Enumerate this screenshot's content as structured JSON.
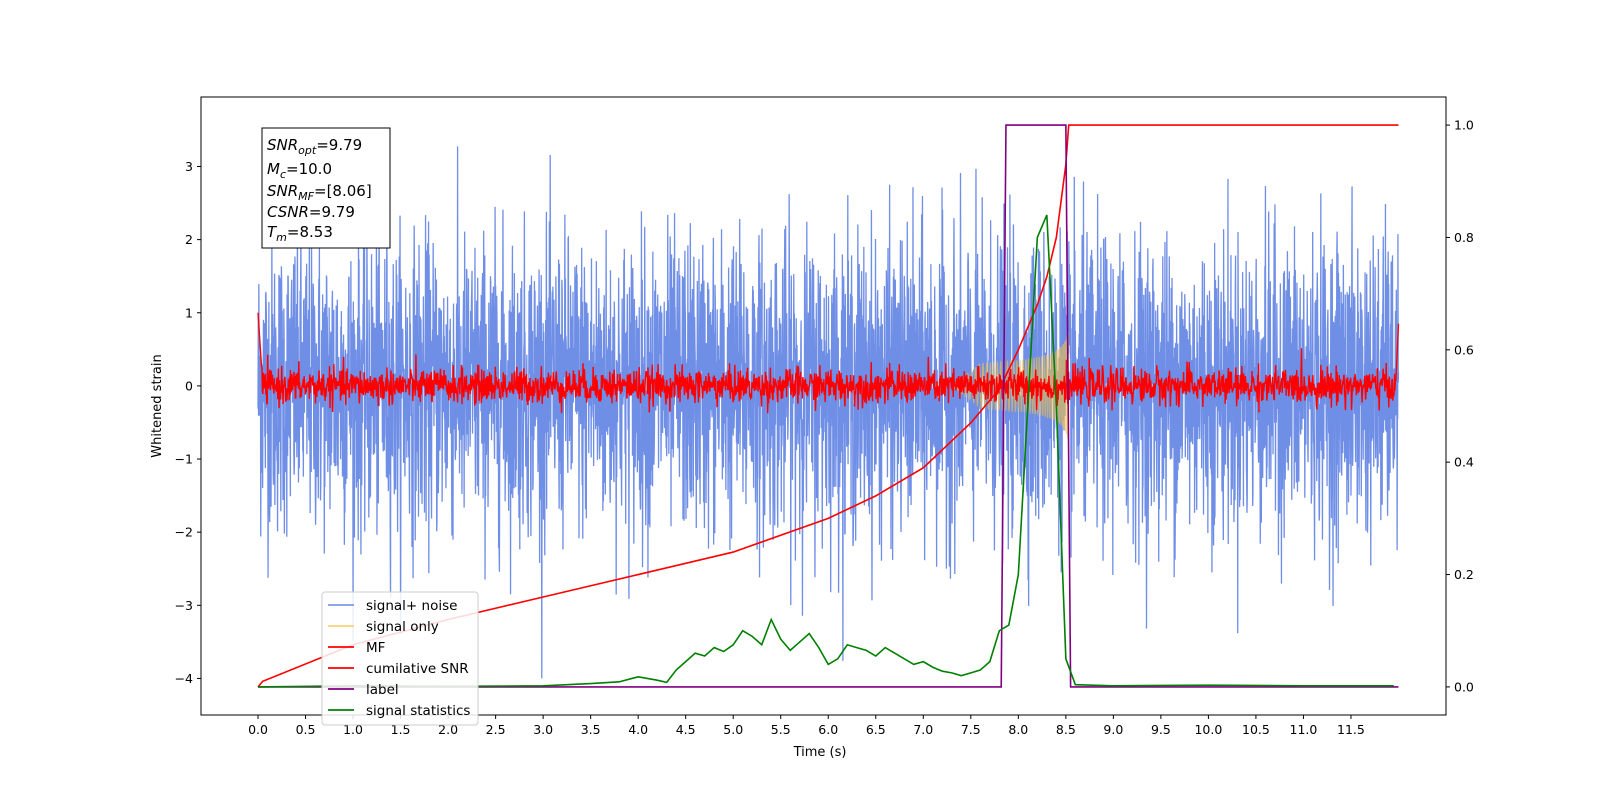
{
  "chart_data": {
    "type": "line",
    "xlabel": "Time (s)",
    "ylabel": "Whitened strain",
    "xlim": [
      -0.6,
      12.5
    ],
    "ylim": [
      -4.5,
      3.95
    ],
    "y2lim": [
      -0.05,
      1.05
    ],
    "x_ticks": [
      "0.0",
      "0.5",
      "1.0",
      "1.5",
      "2.0",
      "2.5",
      "3.0",
      "3.5",
      "4.0",
      "4.5",
      "5.0",
      "5.5",
      "6.0",
      "6.5",
      "7.0",
      "7.5",
      "8.0",
      "8.5",
      "9.0",
      "9.5",
      "10.0",
      "10.5",
      "11.0",
      "11.5"
    ],
    "y_ticks": [
      "3",
      "2",
      "1",
      "0",
      "−1",
      "−2",
      "−3",
      "−4"
    ],
    "y2_ticks": [
      "1.0",
      "0.8",
      "0.6",
      "0.4",
      "0.2",
      "0.0"
    ],
    "grid": false,
    "legend_position": "lower left",
    "info_box": {
      "snr_opt": {
        "main": "SNR",
        "sub": "opt",
        "value": "=9.79"
      },
      "mc": {
        "main": "M",
        "sub": "c",
        "value": "=10.0"
      },
      "snr_mf": {
        "main": "SNR",
        "sub": "MF",
        "value": "=[8.06]"
      },
      "csnr": {
        "main": "CSNR",
        "value": "=9.79"
      },
      "tm": {
        "main": "T",
        "sub": "m",
        "value": "=8.53"
      }
    },
    "series": [
      {
        "name": "signal+ noise",
        "color": "#6f8ee6",
        "axis": "left",
        "kind": "noise",
        "x_range": [
          0.0,
          12.0
        ],
        "y_spread": 1.0,
        "y_extremes": [
          -4.0,
          3.55
        ]
      },
      {
        "name": "signal only",
        "color": "#f5c242",
        "axis": "left",
        "kind": "chirp",
        "x_range": [
          7.3,
          8.53
        ],
        "amplitude_at_end": 0.8
      },
      {
        "name": "MF",
        "color": "#ff0000",
        "axis": "left",
        "kind": "noise",
        "x_range": [
          0.0,
          12.0
        ],
        "y_spread": 0.12
      },
      {
        "name": "cumilative SNR",
        "color": "#ff0000",
        "axis": "right",
        "x": [
          0.0,
          0.05,
          1.0,
          2.0,
          3.0,
          4.0,
          5.0,
          6.0,
          6.5,
          7.0,
          7.5,
          7.8,
          8.0,
          8.2,
          8.3,
          8.4,
          8.5,
          8.53,
          12.0
        ],
        "y": [
          0.0,
          0.01,
          0.075,
          0.12,
          0.16,
          0.2,
          0.24,
          0.3,
          0.34,
          0.39,
          0.47,
          0.53,
          0.6,
          0.68,
          0.73,
          0.8,
          0.93,
          1.0,
          1.0
        ]
      },
      {
        "name": "label",
        "color": "#800080",
        "axis": "right",
        "x": [
          0.0,
          7.82,
          7.87,
          8.5,
          8.55,
          12.0
        ],
        "y": [
          0.0,
          0.0,
          1.0,
          1.0,
          0.0,
          0.0
        ]
      },
      {
        "name": "signal statistics",
        "color": "#008000",
        "axis": "right",
        "x": [
          0.0,
          1.0,
          2.0,
          3.0,
          3.5,
          3.8,
          4.0,
          4.2,
          4.3,
          4.4,
          4.5,
          4.6,
          4.7,
          4.8,
          4.9,
          5.0,
          5.1,
          5.2,
          5.3,
          5.4,
          5.5,
          5.6,
          5.7,
          5.8,
          5.9,
          6.0,
          6.1,
          6.2,
          6.3,
          6.4,
          6.5,
          6.6,
          6.7,
          6.8,
          6.9,
          7.0,
          7.1,
          7.2,
          7.3,
          7.4,
          7.5,
          7.6,
          7.7,
          7.8,
          7.9,
          8.0,
          8.1,
          8.2,
          8.3,
          8.4,
          8.5,
          8.6,
          9.0,
          10.0,
          11.0,
          11.95
        ],
        "y": [
          0.0,
          0.002,
          0.001,
          0.002,
          0.006,
          0.009,
          0.018,
          0.012,
          0.008,
          0.03,
          0.045,
          0.06,
          0.055,
          0.07,
          0.063,
          0.075,
          0.1,
          0.09,
          0.075,
          0.12,
          0.085,
          0.065,
          0.08,
          0.095,
          0.07,
          0.04,
          0.05,
          0.075,
          0.07,
          0.065,
          0.055,
          0.07,
          0.06,
          0.05,
          0.04,
          0.045,
          0.035,
          0.028,
          0.025,
          0.02,
          0.025,
          0.03,
          0.045,
          0.1,
          0.11,
          0.2,
          0.5,
          0.8,
          0.84,
          0.5,
          0.05,
          0.004,
          0.002,
          0.003,
          0.002,
          0.002
        ]
      }
    ]
  }
}
